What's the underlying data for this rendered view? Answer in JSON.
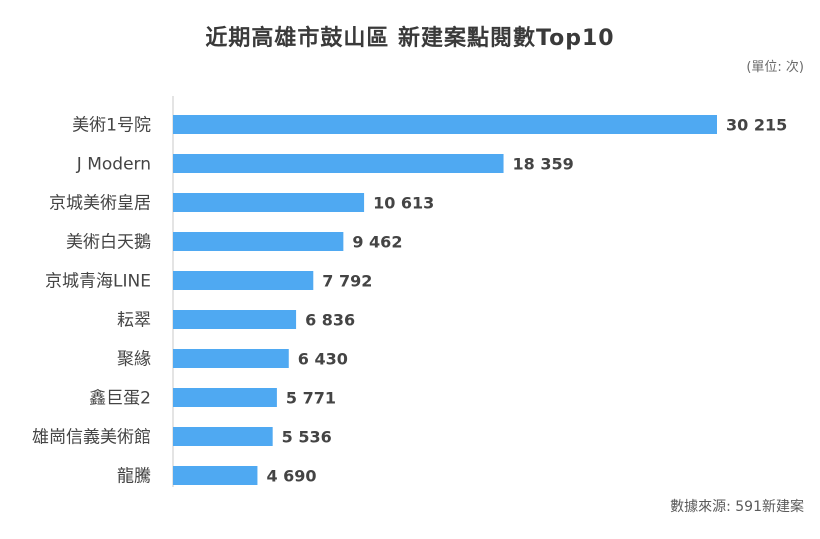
{
  "chart_data": {
    "type": "bar",
    "orientation": "horizontal",
    "title": "近期高雄市鼓山區 新建案點閱數Top10",
    "unit_note": "(單位: 次)",
    "source": "數據來源: 591新建案",
    "categories": [
      "美術1号院",
      "J Modern",
      "京城美術皇居",
      "美術白天鵝",
      "京城青海LINE",
      "耘翠",
      "聚緣",
      "鑫巨蛋2",
      "雄崗信義美術館",
      "龍騰"
    ],
    "values": [
      30215,
      18359,
      10613,
      9462,
      7792,
      6836,
      6430,
      5771,
      5536,
      4690
    ],
    "value_labels": [
      "30 215",
      "18 359",
      "10 613",
      "9 462",
      "7 792",
      "6 836",
      "6 430",
      "5 771",
      "5 536",
      "4 690"
    ],
    "xlim": [
      0,
      30215
    ],
    "bar_color": "#4fa9f2",
    "grid": false
  }
}
